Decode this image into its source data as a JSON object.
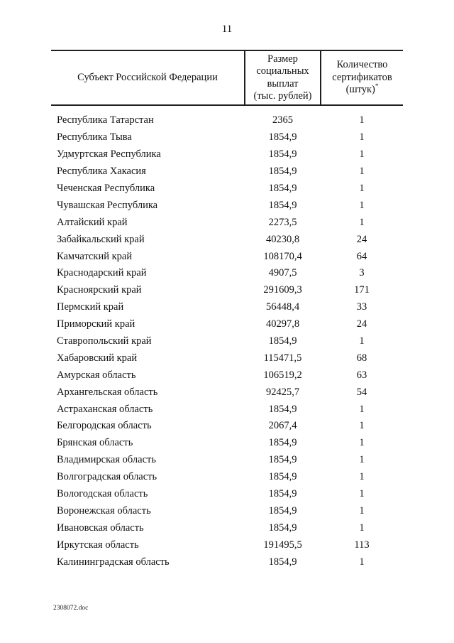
{
  "page": {
    "number": "11",
    "footer": "2308072.doc"
  },
  "table": {
    "columns": [
      {
        "label": "Субъект Российской Федерации"
      },
      {
        "label": "Размер\nсоциальных\nвыплат\n(тыс. рублей)"
      },
      {
        "label": "Количество\nсертификатов\n(штук)",
        "superscript": "*"
      }
    ],
    "rows": [
      {
        "region": "Республика Татарстан",
        "amount": "2365",
        "certificates": "1"
      },
      {
        "region": "Республика Тыва",
        "amount": "1854,9",
        "certificates": "1"
      },
      {
        "region": "Удмуртская Республика",
        "amount": "1854,9",
        "certificates": "1"
      },
      {
        "region": "Республика Хакасия",
        "amount": "1854,9",
        "certificates": "1"
      },
      {
        "region": "Чеченская Республика",
        "amount": "1854,9",
        "certificates": "1"
      },
      {
        "region": "Чувашская Республика",
        "amount": "1854,9",
        "certificates": "1"
      },
      {
        "region": "Алтайский край",
        "amount": "2273,5",
        "certificates": "1"
      },
      {
        "region": "Забайкальский край",
        "amount": "40230,8",
        "certificates": "24"
      },
      {
        "region": "Камчатский край",
        "amount": "108170,4",
        "certificates": "64"
      },
      {
        "region": "Краснодарский край",
        "amount": "4907,5",
        "certificates": "3"
      },
      {
        "region": "Красноярский край",
        "amount": "291609,3",
        "certificates": "171"
      },
      {
        "region": "Пермский край",
        "amount": "56448,4",
        "certificates": "33"
      },
      {
        "region": "Приморский край",
        "amount": "40297,8",
        "certificates": "24"
      },
      {
        "region": "Ставропольский край",
        "amount": "1854,9",
        "certificates": "1"
      },
      {
        "region": "Хабаровский край",
        "amount": "115471,5",
        "certificates": "68"
      },
      {
        "region": "Амурская область",
        "amount": "106519,2",
        "certificates": "63"
      },
      {
        "region": "Архангельская область",
        "amount": "92425,7",
        "certificates": "54"
      },
      {
        "region": "Астраханская область",
        "amount": "1854,9",
        "certificates": "1"
      },
      {
        "region": "Белгородская область",
        "amount": "2067,4",
        "certificates": "1"
      },
      {
        "region": "Брянская область",
        "amount": "1854,9",
        "certificates": "1"
      },
      {
        "region": "Владимирская область",
        "amount": "1854,9",
        "certificates": "1"
      },
      {
        "region": "Волгоградская область",
        "amount": "1854,9",
        "certificates": "1"
      },
      {
        "region": "Вологодская область",
        "amount": "1854,9",
        "certificates": "1"
      },
      {
        "region": "Воронежская область",
        "amount": "1854,9",
        "certificates": "1"
      },
      {
        "region": "Ивановская область",
        "amount": "1854,9",
        "certificates": "1"
      },
      {
        "region": "Иркутская область",
        "amount": "191495,5",
        "certificates": "113"
      },
      {
        "region": "Калининградская область",
        "amount": "1854,9",
        "certificates": "1"
      }
    ]
  }
}
